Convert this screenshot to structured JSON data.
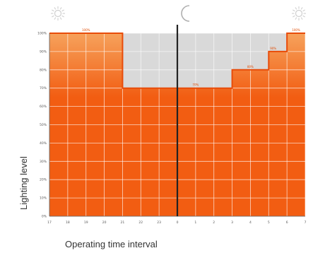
{
  "chart_data": {
    "type": "area",
    "title": "",
    "xlabel": "Operating time interval",
    "ylabel": "Lighting level",
    "x_ticks": [
      "17",
      "18",
      "19",
      "20",
      "21",
      "22",
      "23",
      "0",
      "1",
      "2",
      "3",
      "4",
      "5",
      "6",
      "7"
    ],
    "y_ticks": [
      "0%",
      "10%",
      "20%",
      "30%",
      "40%",
      "50%",
      "60%",
      "70%",
      "80%",
      "90%",
      "100%"
    ],
    "ylim": [
      0,
      100
    ],
    "grid": true,
    "series": [
      {
        "steps": [
          {
            "from": "17",
            "to": "21",
            "value": 100
          },
          {
            "from": "21",
            "to": "0",
            "value": 70
          },
          {
            "from": "0",
            "to": "3",
            "value": 70
          },
          {
            "from": "3",
            "to": "4",
            "value": 80
          },
          {
            "from": "4",
            "to": "5",
            "value": 80
          },
          {
            "from": "5",
            "to": "5.5",
            "value": 90
          },
          {
            "from": "5.5",
            "to": "6",
            "value": 90
          },
          {
            "from": "6",
            "to": "7",
            "value": 100
          }
        ]
      }
    ],
    "data_labels": [
      {
        "text": "100%",
        "at": "19"
      },
      {
        "text": "70%",
        "at": "1"
      },
      {
        "text": "80%",
        "at": "4"
      },
      {
        "text": "90%",
        "at": "5.25"
      },
      {
        "text": "100%",
        "at": "6.5"
      }
    ],
    "icons": {
      "left": "sun-icon",
      "middle": "moon-icon",
      "right": "sun-icon"
    },
    "colors": {
      "fill_top": "#f6a25c",
      "fill_bottom": "#f25d12",
      "line": "#e84c0a",
      "unused": "#d9d9d9",
      "grid": "#ffffff",
      "midnight_line": "#222222",
      "sun": "#cfcfcf",
      "moon": "#b0b0b0"
    }
  }
}
